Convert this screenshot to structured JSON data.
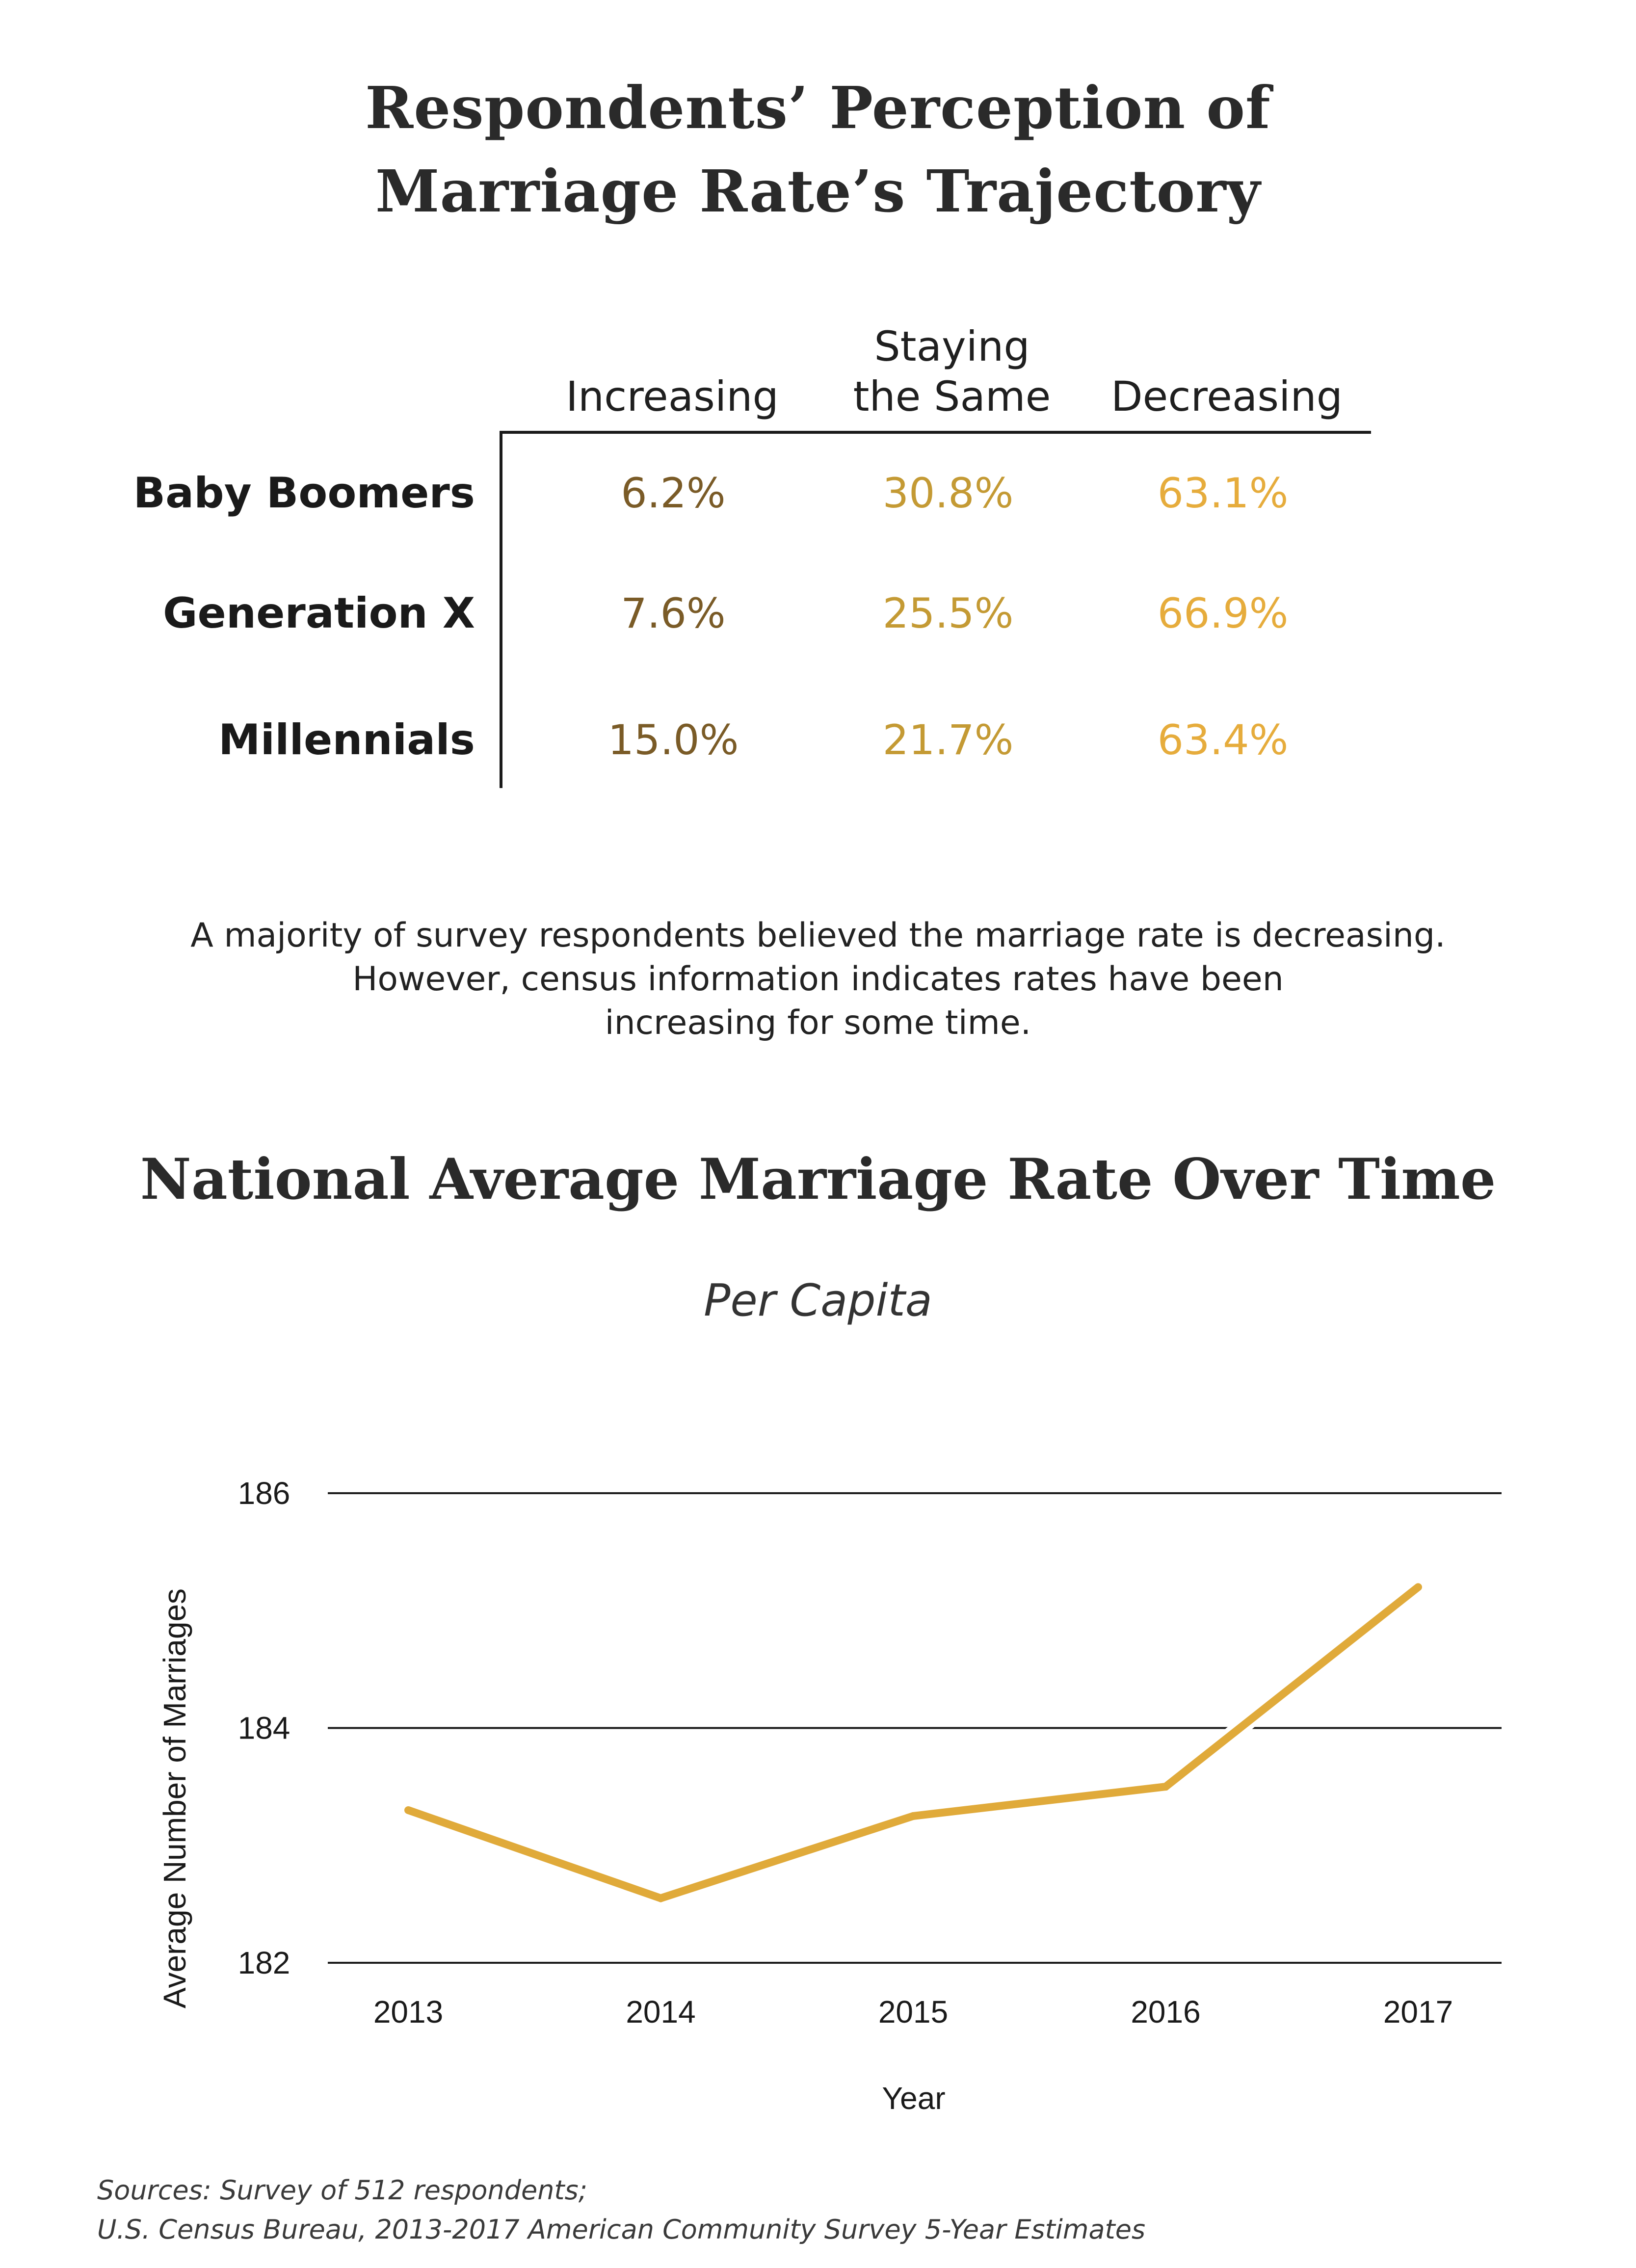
{
  "survey_section": {
    "title_line1": "Respondents’ Perception of",
    "title_line2": "Marriage Rate’s Trajectory",
    "columns": {
      "increasing": "Increasing",
      "same_line1": "Staying",
      "same_line2": "the Same",
      "decreasing": "Decreasing"
    },
    "rows": [
      {
        "label": "Baby Boomers",
        "increasing": "6.2%",
        "same": "30.8%",
        "decreasing": "63.1%"
      },
      {
        "label": "Generation X",
        "increasing": "7.6%",
        "same": "25.5%",
        "decreasing": "66.9%"
      },
      {
        "label": "Millennials",
        "increasing": "15.0%",
        "same": "21.7%",
        "decreasing": "63.4%"
      }
    ],
    "colors": {
      "increasing": "#7a5b27",
      "same": "#c49a34",
      "decreasing": "#e6ac3c"
    }
  },
  "summary": {
    "line1": "A majority of survey respondents believed the marriage rate is decreasing.",
    "line2": "However, census information indicates rates have been",
    "line3": "increasing for some time."
  },
  "chart_section": {
    "title": "National Average Marriage Rate Over Time",
    "subtitle": "Per Capita"
  },
  "chart_data": {
    "type": "line",
    "title": "National Average Marriage Rate Over Time",
    "subtitle": "Per Capita",
    "xlabel": "Year",
    "ylabel": "Average Number of Marriages",
    "categories": [
      "2013",
      "2014",
      "2015",
      "2016",
      "2017"
    ],
    "series": [
      {
        "name": "Average Number of Marriages",
        "values": [
          183.3,
          182.55,
          183.25,
          183.5,
          185.2
        ],
        "color": "#e0aa3a"
      }
    ],
    "ylim": [
      182,
      186
    ],
    "yticks": [
      182,
      184,
      186
    ],
    "grid": true
  },
  "sources": {
    "line1": "Sources: Survey of 512 respondents;",
    "line2": "U.S. Census Bureau, 2013-2017 American Community Survey 5-Year Estimates"
  }
}
